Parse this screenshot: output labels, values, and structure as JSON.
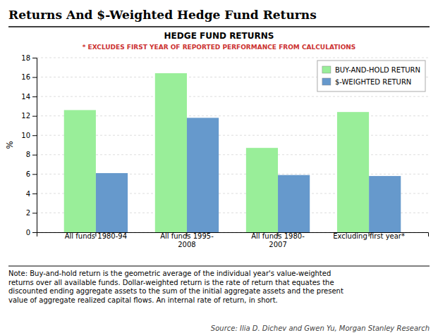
{
  "chart_data": {
    "type": "bar",
    "title": "Returns And $-Weighted Hedge Fund Returns",
    "chart_title": "HEDGE FUND RETURNS",
    "subtitle": "* EXCLUDES FIRST YEAR OF REPORTED PERFORMANCE FROM CALCULATIONS",
    "categories": [
      "All funds 1980-94",
      "All funds 1995-\n2008",
      "All funds 1980-\n2007",
      "Excluding first year*"
    ],
    "series": [
      {
        "name": "BUY-AND-HOLD RETURN",
        "color": "#99EE99",
        "values": [
          12.6,
          16.4,
          8.7,
          12.4
        ]
      },
      {
        "name": "$-WEIGHTED RETURN",
        "color": "#6699CC",
        "values": [
          6.1,
          11.8,
          5.9,
          5.8
        ]
      }
    ],
    "ylabel": "%",
    "ylim": [
      0,
      18
    ],
    "yticks": [
      0,
      2,
      4,
      6,
      8,
      10,
      12,
      14,
      16,
      18
    ],
    "grid": true,
    "legend": "upper right",
    "note": "Note: Buy-and-hold return is the geometric average of the individual year's value-weighted\nreturns over all available funds. Dollar-weighted return is the rate of return that equates the\ndiscounted ending aggregate assets to the sum of the initial aggregate assets and the present\nvalue of aggregate realized capital flows.  An internal rate of return, in short.",
    "source": "Source: Ilia D. Dichev and Gwen Yu, Morgan Stanley Research"
  }
}
